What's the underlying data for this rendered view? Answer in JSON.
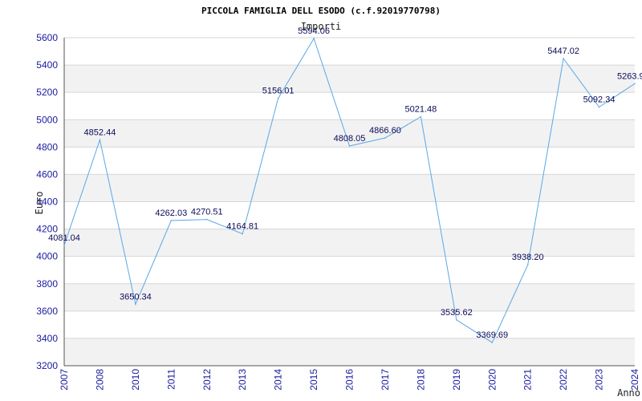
{
  "chart_data": {
    "type": "line",
    "title": "PICCOLA FAMIGLIA DELL ESODO (c.f.92019770798)",
    "subtitle": "Importi",
    "xlabel": "Anno",
    "ylabel": "Euro",
    "x": [
      "2007",
      "2008",
      "2010",
      "2011",
      "2012",
      "2013",
      "2014",
      "2015",
      "2016",
      "2017",
      "2018",
      "2019",
      "2020",
      "2021",
      "2022",
      "2023",
      "2024"
    ],
    "series": [
      {
        "values": [
          4081.04,
          4852.44,
          3650.34,
          4262.03,
          4270.51,
          4164.81,
          5156.01,
          5594.06,
          4808.05,
          4866.6,
          5021.48,
          3535.62,
          3369.69,
          3938.2,
          5447.02,
          5092.34,
          5263.9
        ]
      }
    ],
    "data_labels": [
      "4081.04",
      "4852.44",
      "3650.34",
      "4262.03",
      "4270.51",
      "4164.81",
      "5156.01",
      "5594.06",
      "4808.05",
      "4866.60",
      "5021.48",
      "3535.62",
      "3369.69",
      "3938.20",
      "5447.02",
      "5092.34",
      "5263.9"
    ],
    "yticks": [
      3200,
      3400,
      3600,
      3800,
      4000,
      4200,
      4400,
      4600,
      4800,
      5000,
      5200,
      5400,
      5600
    ],
    "ylim": [
      3200,
      5600
    ],
    "grid": true,
    "colors": {
      "line": "#5aa8e6",
      "band": "#f2f2f2",
      "grid": "#d6d6d6",
      "tick_text": "#1a1aa0",
      "label_text": "#0a0a5a"
    }
  }
}
